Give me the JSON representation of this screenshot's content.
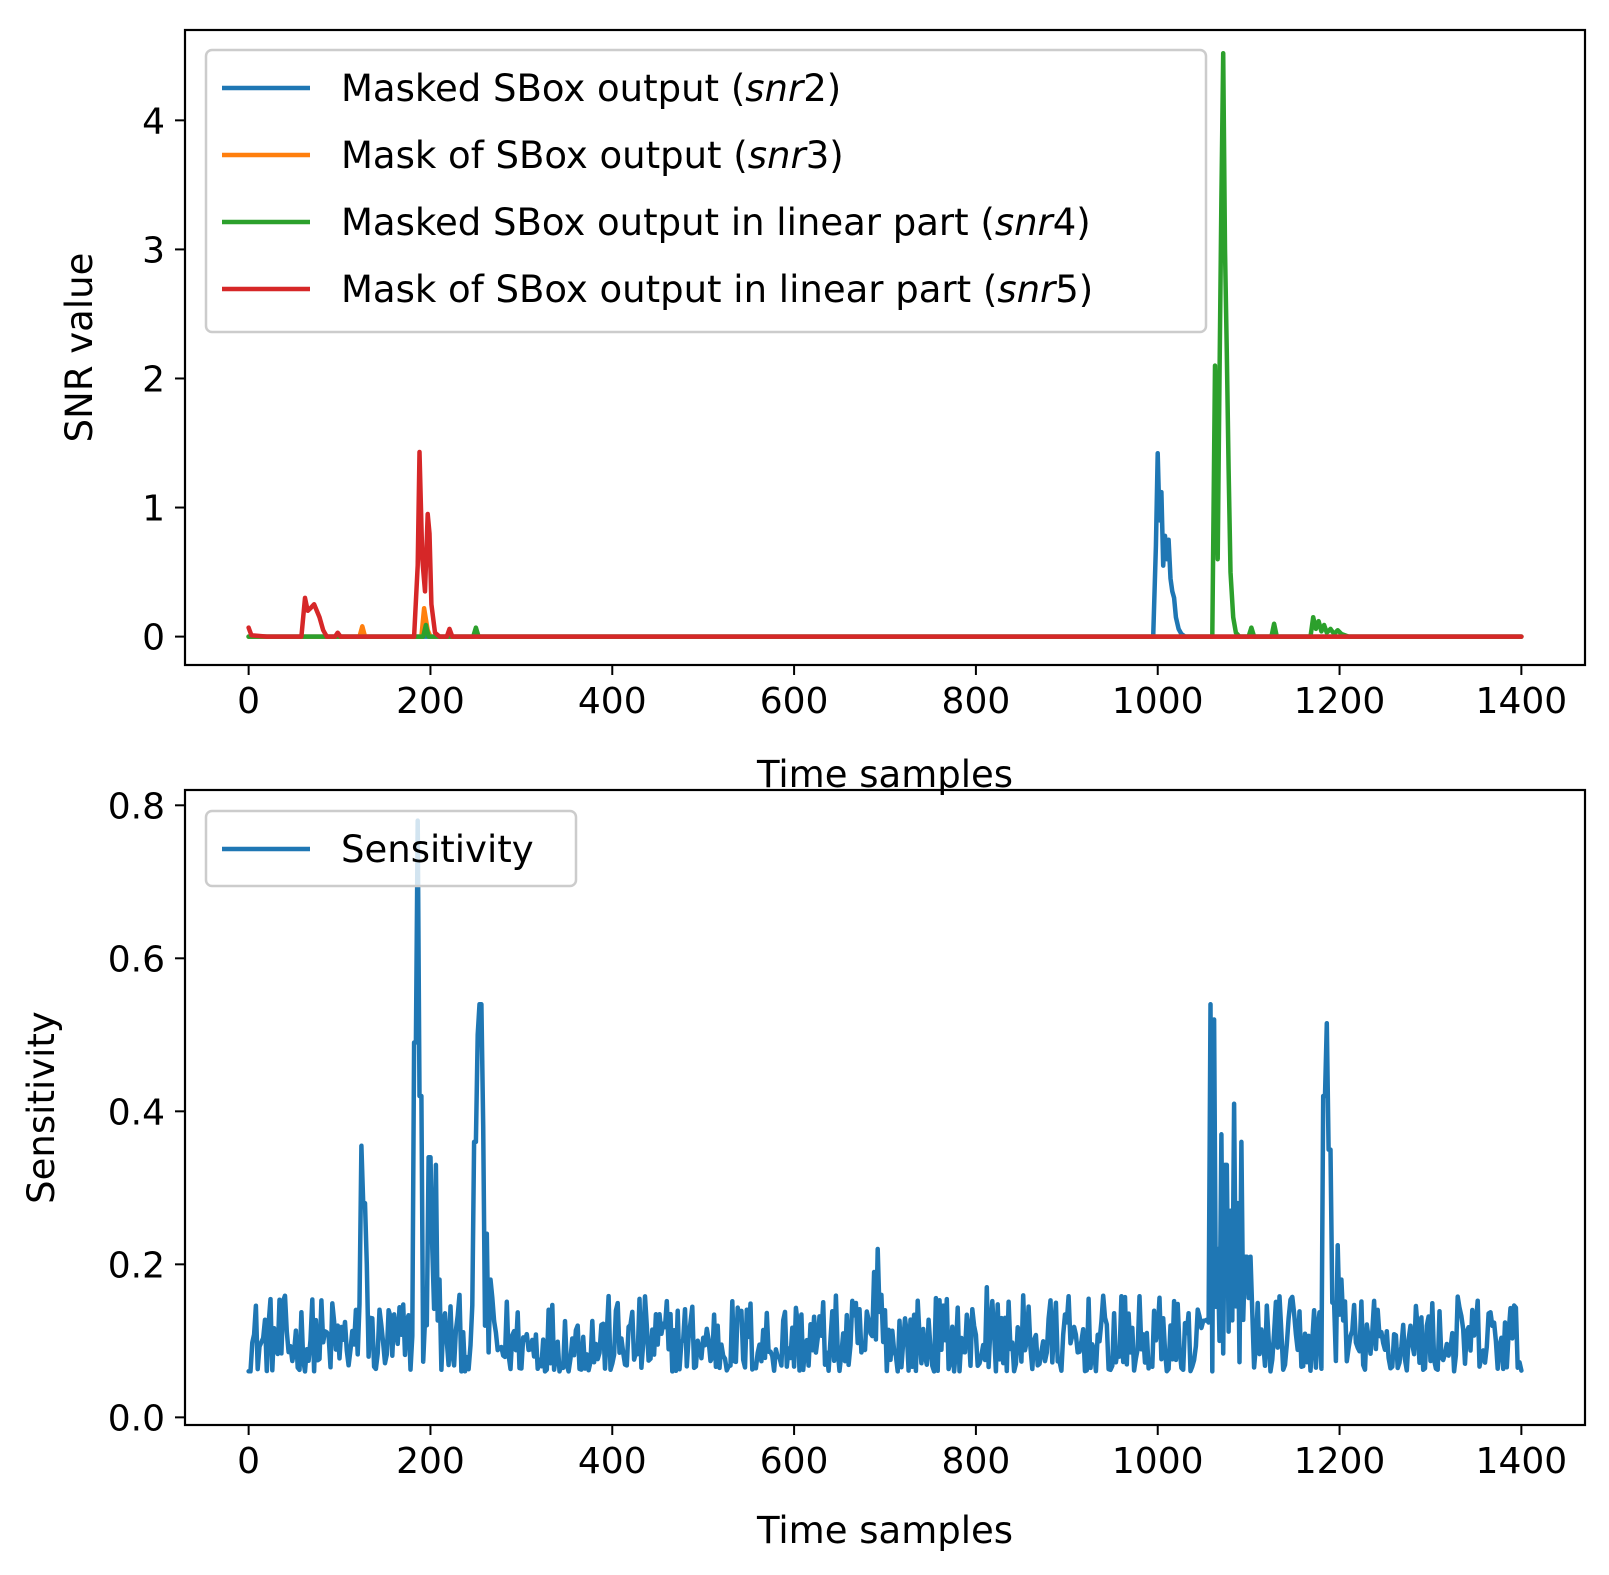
{
  "chart_data": [
    {
      "type": "line",
      "xlabel": "Time samples",
      "ylabel": "SNR value",
      "xlim": [
        -70,
        1470
      ],
      "ylim": [
        -0.22,
        4.7
      ],
      "xticks": [
        0,
        200,
        400,
        600,
        800,
        1000,
        1200,
        1400
      ],
      "yticks": [
        0,
        1,
        2,
        3,
        4
      ],
      "legend_position": "upper-left",
      "grid": false,
      "series": [
        {
          "name": "Masked SBox output (snr2)",
          "name_parts": [
            "Masked SBox output (",
            "snr",
            "2)"
          ],
          "color": "#1f77b4",
          "points": [
            [
              0,
              0
            ],
            [
              995,
              0
            ],
            [
              998,
              0.7
            ],
            [
              1000,
              1.42
            ],
            [
              1002,
              0.9
            ],
            [
              1004,
              1.12
            ],
            [
              1006,
              0.55
            ],
            [
              1008,
              0.78
            ],
            [
              1010,
              0.6
            ],
            [
              1012,
              0.75
            ],
            [
              1014,
              0.45
            ],
            [
              1016,
              0.35
            ],
            [
              1018,
              0.3
            ],
            [
              1020,
              0.15
            ],
            [
              1023,
              0.06
            ],
            [
              1026,
              0.02
            ],
            [
              1030,
              0
            ],
            [
              1400,
              0
            ]
          ]
        },
        {
          "name": "Mask of SBox output (snr3)",
          "name_parts": [
            "Mask of SBox output (",
            "snr",
            "3)"
          ],
          "color": "#ff7f0e",
          "points": [
            [
              0,
              0
            ],
            [
              122,
              0
            ],
            [
              125,
              0.08
            ],
            [
              128,
              0
            ],
            [
              190,
              0
            ],
            [
              193,
              0.22
            ],
            [
              197,
              0.05
            ],
            [
              200,
              0
            ],
            [
              1400,
              0
            ]
          ]
        },
        {
          "name": "Masked SBox output in linear part (snr4)",
          "name_parts": [
            "Masked SBox output in linear part (",
            "snr",
            "4)"
          ],
          "color": "#2ca02c",
          "points": [
            [
              0,
              0
            ],
            [
              192,
              0
            ],
            [
              195,
              0.09
            ],
            [
              198,
              0
            ],
            [
              247,
              0
            ],
            [
              250,
              0.07
            ],
            [
              253,
              0
            ],
            [
              1060,
              0
            ],
            [
              1063,
              2.1
            ],
            [
              1066,
              0.6
            ],
            [
              1068,
              2.0
            ],
            [
              1070,
              3.4
            ],
            [
              1072,
              4.52
            ],
            [
              1074,
              3.0
            ],
            [
              1076,
              2.2
            ],
            [
              1078,
              1.3
            ],
            [
              1080,
              0.5
            ],
            [
              1083,
              0.15
            ],
            [
              1086,
              0.03
            ],
            [
              1090,
              0
            ],
            [
              1100,
              0
            ],
            [
              1103,
              0.07
            ],
            [
              1106,
              0
            ],
            [
              1125,
              0
            ],
            [
              1128,
              0.1
            ],
            [
              1131,
              0
            ],
            [
              1168,
              0
            ],
            [
              1171,
              0.15
            ],
            [
              1174,
              0.06
            ],
            [
              1177,
              0.12
            ],
            [
              1180,
              0.04
            ],
            [
              1183,
              0.09
            ],
            [
              1186,
              0.03
            ],
            [
              1190,
              0.06
            ],
            [
              1194,
              0.02
            ],
            [
              1198,
              0.05
            ],
            [
              1202,
              0.02
            ],
            [
              1210,
              0
            ],
            [
              1400,
              0
            ]
          ]
        },
        {
          "name": "Mask of SBox output in linear part (snr5)",
          "name_parts": [
            "Mask of SBox output in linear part (",
            "snr",
            "5)"
          ],
          "color": "#d62728",
          "points": [
            [
              0,
              0.07
            ],
            [
              3,
              0.01
            ],
            [
              20,
              0
            ],
            [
              58,
              0
            ],
            [
              62,
              0.3
            ],
            [
              65,
              0.2
            ],
            [
              68,
              0.22
            ],
            [
              72,
              0.25
            ],
            [
              75,
              0.2
            ],
            [
              78,
              0.15
            ],
            [
              82,
              0.05
            ],
            [
              86,
              0
            ],
            [
              95,
              0
            ],
            [
              98,
              0.03
            ],
            [
              101,
              0
            ],
            [
              182,
              0
            ],
            [
              186,
              0.55
            ],
            [
              188,
              1.43
            ],
            [
              191,
              0.6
            ],
            [
              194,
              0.35
            ],
            [
              197,
              0.95
            ],
            [
              199,
              0.8
            ],
            [
              201,
              0.25
            ],
            [
              205,
              0.03
            ],
            [
              210,
              0
            ],
            [
              218,
              0
            ],
            [
              221,
              0.06
            ],
            [
              224,
              0
            ],
            [
              1400,
              0
            ]
          ]
        }
      ]
    },
    {
      "type": "line",
      "xlabel": "Time samples",
      "ylabel": "Sensitivity",
      "xlim": [
        -70,
        1470
      ],
      "ylim": [
        -0.01,
        0.82
      ],
      "xticks": [
        0,
        200,
        400,
        600,
        800,
        1000,
        1200,
        1400
      ],
      "yticks": [
        0.0,
        0.2,
        0.4,
        0.6,
        0.8
      ],
      "legend_position": "upper-left",
      "grid": false,
      "series": [
        {
          "name": "Sensitivity",
          "color": "#1f77b4",
          "noise_range": [
            0.035,
            0.135
          ],
          "peaks": [
            [
              124,
              0.355
            ],
            [
              127,
              0.28
            ],
            [
              130,
              0.2
            ],
            [
              134,
              0.13
            ],
            [
              183,
              0.49
            ],
            [
              186,
              0.78
            ],
            [
              189,
              0.42
            ],
            [
              199,
              0.34
            ],
            [
              202,
              0.22
            ],
            [
              206,
              0.33
            ],
            [
              210,
              0.18
            ],
            [
              249,
              0.36
            ],
            [
              252,
              0.5
            ],
            [
              255,
              0.54
            ],
            [
              258,
              0.38
            ],
            [
              262,
              0.24
            ],
            [
              266,
              0.18
            ],
            [
              688,
              0.19
            ],
            [
              692,
              0.22
            ],
            [
              696,
              0.16
            ],
            [
              700,
              0.14
            ],
            [
              812,
              0.17
            ],
            [
              1058,
              0.54
            ],
            [
              1062,
              0.52
            ],
            [
              1066,
              0.22
            ],
            [
              1070,
              0.37
            ],
            [
              1075,
              0.33
            ],
            [
              1080,
              0.27
            ],
            [
              1084,
              0.41
            ],
            [
              1088,
              0.28
            ],
            [
              1092,
              0.36
            ],
            [
              1097,
              0.21
            ],
            [
              1102,
              0.21
            ],
            [
              1183,
              0.42
            ],
            [
              1186,
              0.515
            ],
            [
              1189,
              0.35
            ],
            [
              1193,
              0.15
            ],
            [
              1198,
              0.225
            ],
            [
              1202,
              0.18
            ]
          ]
        }
      ]
    }
  ]
}
